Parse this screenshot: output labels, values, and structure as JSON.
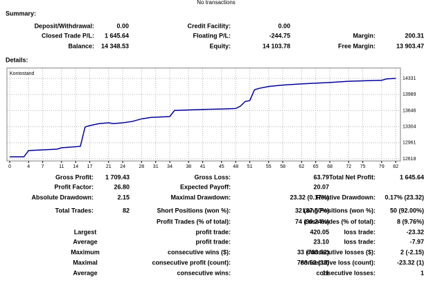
{
  "header": {
    "notice": "No transactions"
  },
  "summary": {
    "title": "Summary:",
    "rows": [
      [
        [
          "Deposit/Withdrawal:",
          "0.00"
        ],
        [
          "Credit Facility:",
          "0.00"
        ],
        null
      ],
      [
        [
          "Closed Trade P/L:",
          "1 645.64"
        ],
        [
          "Floating P/L:",
          "-244.75"
        ],
        [
          "Margin:",
          "200.31"
        ]
      ],
      [
        [
          "Balance:",
          "14 348.53"
        ],
        [
          "Equity:",
          "14 103.78"
        ],
        [
          "Free Margin:",
          "13 903.47"
        ]
      ]
    ]
  },
  "details": {
    "title": "Details:"
  },
  "chart_data": {
    "type": "line",
    "x": [
      0,
      3,
      4,
      7,
      10,
      11,
      15,
      16,
      17,
      19,
      21,
      22,
      24,
      26,
      28,
      30,
      34,
      35,
      38,
      41,
      45,
      48,
      49,
      50,
      51,
      52,
      53,
      55,
      58,
      62,
      65,
      68,
      72,
      75,
      79,
      80,
      82
    ],
    "series": [
      {
        "name": "Kontostand",
        "color": "#00009c",
        "values": [
          12662,
          12662,
          12795,
          12810,
          12825,
          12855,
          12885,
          13297,
          13327,
          13370,
          13386,
          13370,
          13386,
          13415,
          13470,
          13500,
          13519,
          13650,
          13660,
          13670,
          13680,
          13690,
          13740,
          13840,
          13860,
          14090,
          14120,
          14160,
          14190,
          14215,
          14230,
          14245,
          14270,
          14280,
          14290,
          14320,
          14331
        ]
      }
    ],
    "xlim": [
      -0.6,
      83
    ],
    "ylim": [
      12574,
      14553
    ],
    "xticks": [
      0,
      4,
      7,
      11,
      14,
      17,
      21,
      24,
      28,
      31,
      34,
      38,
      41,
      45,
      48,
      51,
      55,
      58,
      62,
      65,
      68,
      72,
      75,
      79,
      82
    ],
    "yticks": [
      12618,
      12961,
      13304,
      13646,
      13989,
      14331
    ],
    "grid": true
  },
  "stats": {
    "rows": [
      [
        [
          "Gross Profit:",
          "1 709.43"
        ],
        [
          "Gross Loss:",
          "63.79"
        ],
        [
          "Total Net Profit:",
          "1 645.64"
        ]
      ],
      [
        [
          "Profit Factor:",
          "26.80"
        ],
        [
          "Expected Payoff:",
          "20.07"
        ],
        null
      ],
      [
        [
          "Absolute Drawdown:",
          "2.15"
        ],
        [
          "Maximal Drawdown:",
          "23.32 (0.17%)"
        ],
        [
          "Relative Drawdown:",
          "0.17% (23.32)"
        ]
      ],
      [
        [
          "Total Trades:",
          "82"
        ],
        [
          "Short Positions (won %):",
          "32 (87.50%)"
        ],
        [
          "Long Positions (won %):",
          "50 (92.00%)"
        ]
      ],
      [
        null,
        [
          "Profit Trades (% of total):",
          "74 (90.24%)"
        ],
        [
          "Loss trades (% of total):",
          "8 (9.76%)"
        ]
      ],
      [
        [
          "Largest"
        ],
        [
          "profit trade:",
          "420.05"
        ],
        [
          "loss trade:",
          "-23.32"
        ]
      ],
      [
        [
          "Average"
        ],
        [
          "profit trade:",
          "23.10"
        ],
        [
          "loss trade:",
          "-7.97"
        ]
      ],
      [
        [
          "Maximum"
        ],
        [
          "consecutive wins ($):",
          "33 (783.52)"
        ],
        [
          "consecutive losses ($):",
          "2 (-2.15)"
        ]
      ],
      [
        [
          "Maximal"
        ],
        [
          "consecutive profit (count):",
          "783.52 (33)"
        ],
        [
          "consecutive loss (count):",
          "-23.32 (1)"
        ]
      ],
      [
        [
          "Average"
        ],
        [
          "consecutive wins:",
          "11"
        ],
        [
          "consecutive losses:",
          "1"
        ]
      ]
    ]
  }
}
